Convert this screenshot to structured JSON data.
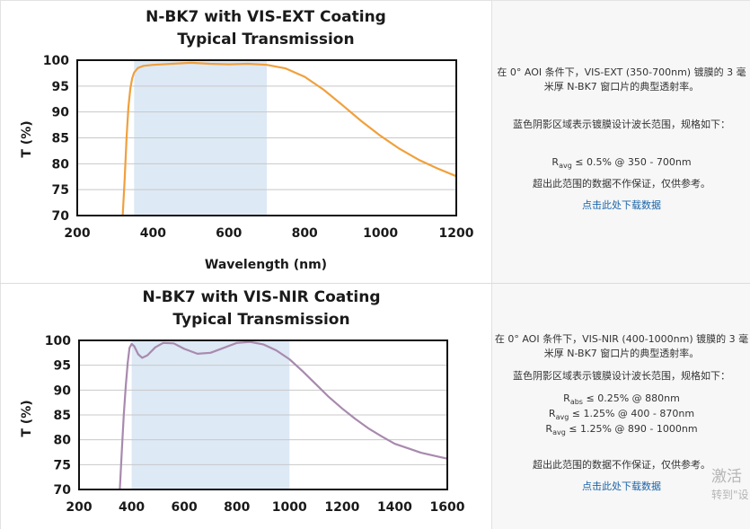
{
  "charts": [
    {
      "title_line1": "N-BK7 with VIS-EXT Coating",
      "title_line2": "Typical Transmission",
      "notes": {
        "desc": "在 0° AOI 条件下，VIS-EXT (350-700nm) 镀膜的 3 毫米厚 N-BK7 窗口片的典型透射率。",
        "shade": "蓝色阴影区域表示镀膜设计波长范围，规格如下：",
        "specs": [
          {
            "prefix": "R",
            "sub": "avg",
            "text": "≤ 0.5% @ 350 - 700nm"
          }
        ],
        "disclaimer": "超出此范围的数据不作保证，仅供参考。",
        "download": "点击此处下载数据"
      }
    },
    {
      "title_line1": "N-BK7 with VIS-NIR Coating",
      "title_line2": "Typical Transmission",
      "notes": {
        "desc": "在 0° AOI 条件下，VIS-NIR (400-1000nm) 镀膜的 3 毫米厚 N-BK7 窗口片的典型透射率。",
        "shade": "蓝色阴影区域表示镀膜设计波长范围，规格如下：",
        "specs": [
          {
            "prefix": "R",
            "sub": "abs",
            "text": "≤ 0.25% @ 880nm"
          },
          {
            "prefix": "R",
            "sub": "avg",
            "text": "≤ 1.25% @ 400 - 870nm"
          },
          {
            "prefix": "R",
            "sub": "avg",
            "text": "≤ 1.25% @ 890 - 1000nm"
          }
        ],
        "disclaimer": "超出此范围的数据不作保证，仅供参考。",
        "download": "点击此处下载数据"
      }
    }
  ],
  "watermark": {
    "line1": "激活",
    "line2": "转到\"设"
  },
  "chart_data": [
    {
      "type": "line",
      "title": "N-BK7 with VIS-EXT Coating Typical Transmission",
      "xlabel": "Wavelength (nm)",
      "ylabel": "T (%)",
      "xlim": [
        200,
        1200
      ],
      "ylim": [
        70,
        100
      ],
      "xticks": [
        200,
        400,
        600,
        800,
        1000,
        1200
      ],
      "yticks": [
        70,
        75,
        80,
        85,
        90,
        95,
        100
      ],
      "grid": true,
      "shaded_region": [
        350,
        700
      ],
      "line_color": "#f0a03c",
      "shade_color": "#dde9f5",
      "series": [
        {
          "x": [
            320,
            325,
            330,
            335,
            340,
            345,
            350,
            360,
            375,
            400,
            450,
            500,
            550,
            600,
            650,
            700,
            750,
            800,
            850,
            900,
            950,
            1000,
            1050,
            1100,
            1150,
            1200
          ],
          "y": [
            70,
            77,
            85,
            91,
            94.5,
            96.5,
            97.6,
            98.5,
            98.9,
            99.1,
            99.3,
            99.5,
            99.3,
            99.2,
            99.3,
            99.1,
            98.4,
            96.8,
            94.3,
            91.3,
            88.2,
            85.4,
            82.9,
            80.8,
            79.1,
            77.6
          ]
        }
      ]
    },
    {
      "type": "line",
      "title": "N-BK7 with VIS-NIR Coating Typical Transmission",
      "xlabel": "",
      "ylabel": "T (%)",
      "xlim": [
        200,
        1600
      ],
      "ylim": [
        70,
        100
      ],
      "xticks": [
        200,
        400,
        600,
        800,
        1000,
        1200,
        1400,
        1600
      ],
      "yticks": [
        70,
        75,
        80,
        85,
        90,
        95,
        100
      ],
      "grid": true,
      "shaded_region": [
        400,
        1000
      ],
      "line_color": "#a88aae",
      "shade_color": "#dde9f5",
      "series": [
        {
          "x": [
            355,
            362,
            370,
            378,
            385,
            392,
            400,
            410,
            425,
            440,
            460,
            490,
            520,
            560,
            600,
            650,
            700,
            750,
            800,
            850,
            900,
            950,
            1000,
            1050,
            1100,
            1150,
            1200,
            1250,
            1300,
            1350,
            1400,
            1450,
            1500,
            1550,
            1600
          ],
          "y": [
            70,
            77,
            85,
            91,
            95.5,
            98.5,
            99.3,
            98.8,
            97.2,
            96.5,
            97,
            98.6,
            99.5,
            99.4,
            98.3,
            97.3,
            97.5,
            98.5,
            99.5,
            99.7,
            99.2,
            98,
            96.2,
            93.8,
            91.2,
            88.6,
            86.3,
            84.2,
            82.3,
            80.7,
            79.2,
            78.3,
            77.4,
            76.8,
            76.2
          ]
        }
      ]
    }
  ]
}
